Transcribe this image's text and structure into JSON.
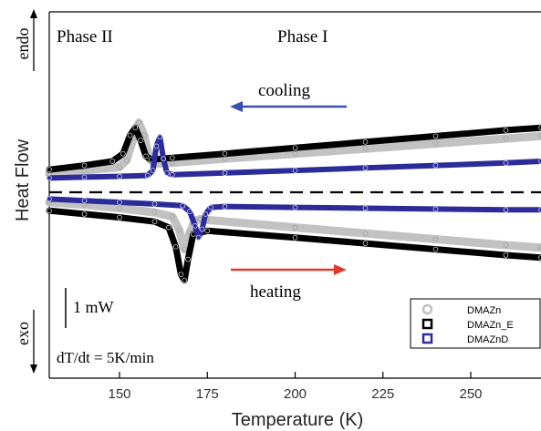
{
  "chart_data": {
    "type": "line",
    "xlabel": "Temperature (K)",
    "ylabel": "Heat Flow",
    "xlim": [
      130,
      270
    ],
    "xticks": [
      150,
      175,
      200,
      225,
      250
    ],
    "ylim": [
      -10,
      10
    ],
    "grid": false,
    "legend_position": "bottom-right",
    "baseline": 0,
    "annotations": {
      "phase_ii": "Phase II",
      "phase_i": "Phase I",
      "cooling": "cooling",
      "heating": "heating",
      "scale_bar": "1 mW",
      "rate": "dT/dt = 5K/min",
      "endo": "endo",
      "exo": "exo"
    },
    "series": [
      {
        "name": "DMAZn",
        "color": "#c2c2c2",
        "cooling": {
          "x": [
            130,
            140,
            150,
            152,
            154,
            155.5,
            157,
            158.5,
            160,
            165,
            180,
            200,
            220,
            240,
            260,
            270
          ],
          "y": [
            2.2,
            2.6,
            3.0,
            3.8,
            6.5,
            8.3,
            6.8,
            4.0,
            3.4,
            3.5,
            4.0,
            4.6,
            5.2,
            5.8,
            6.4,
            6.7
          ]
        },
        "heating": {
          "x": [
            130,
            140,
            150,
            160,
            165,
            167,
            168.5,
            170,
            171.5,
            173,
            175,
            200,
            220,
            240,
            260,
            270
          ],
          "y": [
            -1.2,
            -1.5,
            -1.9,
            -2.4,
            -2.9,
            -4.5,
            -6.8,
            -4.8,
            -3.4,
            -3.2,
            -3.3,
            -4.2,
            -4.9,
            -5.6,
            -6.3,
            -6.6
          ]
        }
      },
      {
        "name": "DMAZn_E",
        "color": "#000000",
        "cooling": {
          "x": [
            130,
            140,
            148,
            151,
            153,
            154.5,
            156,
            157.5,
            159,
            165,
            180,
            200,
            220,
            240,
            260,
            270
          ],
          "y": [
            2.7,
            3.2,
            3.7,
            4.6,
            6.8,
            7.7,
            6.2,
            4.3,
            3.9,
            4.1,
            4.6,
            5.3,
            6.0,
            6.7,
            7.4,
            7.7
          ]
        },
        "heating": {
          "x": [
            130,
            140,
            150,
            160,
            164,
            166,
            167.5,
            168.5,
            169.5,
            171,
            175,
            200,
            220,
            240,
            260,
            270
          ],
          "y": [
            -2.2,
            -2.6,
            -3.0,
            -3.5,
            -4.2,
            -6.5,
            -9.8,
            -10.5,
            -8.0,
            -5.0,
            -4.6,
            -5.4,
            -6.1,
            -6.8,
            -7.5,
            -7.8
          ]
        }
      },
      {
        "name": "DMAZnD",
        "color": "#2b2b9a",
        "cooling": {
          "x": [
            130,
            140,
            150,
            158,
            159.5,
            160.5,
            161.5,
            162.5,
            163.5,
            165,
            180,
            200,
            220,
            240,
            260,
            270
          ],
          "y": [
            1.7,
            1.8,
            1.9,
            2.0,
            2.6,
            5.5,
            6.6,
            4.0,
            2.3,
            2.1,
            2.3,
            2.6,
            2.9,
            3.2,
            3.5,
            3.7
          ]
        },
        "heating": {
          "x": [
            130,
            140,
            150,
            160,
            168,
            170,
            171.5,
            172.5,
            173.5,
            174.5,
            176,
            180,
            200,
            220,
            240,
            260,
            270
          ],
          "y": [
            -0.8,
            -1.0,
            -1.2,
            -1.4,
            -1.6,
            -2.3,
            -4.0,
            -5.4,
            -4.4,
            -2.6,
            -1.8,
            -1.7,
            -1.8,
            -1.9,
            -2.0,
            -2.1,
            -2.1
          ]
        }
      }
    ]
  }
}
